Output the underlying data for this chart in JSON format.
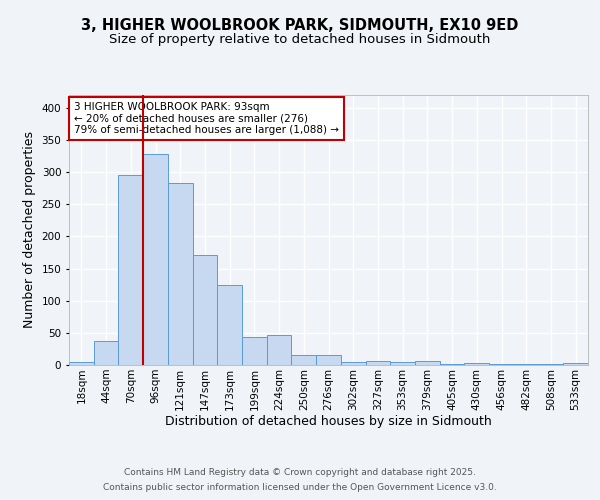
{
  "title_line1": "3, HIGHER WOOLBROOK PARK, SIDMOUTH, EX10 9ED",
  "title_line2": "Size of property relative to detached houses in Sidmouth",
  "xlabel": "Distribution of detached houses by size in Sidmouth",
  "ylabel": "Number of detached properties",
  "categories": [
    "18sqm",
    "44sqm",
    "70sqm",
    "96sqm",
    "121sqm",
    "147sqm",
    "173sqm",
    "199sqm",
    "224sqm",
    "250sqm",
    "276sqm",
    "302sqm",
    "327sqm",
    "353sqm",
    "379sqm",
    "405sqm",
    "430sqm",
    "456sqm",
    "482sqm",
    "508sqm",
    "533sqm"
  ],
  "values": [
    4,
    38,
    295,
    328,
    283,
    171,
    125,
    43,
    46,
    15,
    16,
    5,
    6,
    4,
    6,
    1,
    3,
    1,
    2,
    1,
    3
  ],
  "bar_color": "#c6d9f0",
  "bar_edge_color": "#5b9bd5",
  "vline_x_index": 3,
  "vline_color": "#c00000",
  "annotation_text": "3 HIGHER WOOLBROOK PARK: 93sqm\n← 20% of detached houses are smaller (276)\n79% of semi-detached houses are larger (1,088) →",
  "annotation_box_facecolor": "#ffffff",
  "annotation_box_edgecolor": "#c00000",
  "ylim": [
    0,
    420
  ],
  "yticks": [
    0,
    50,
    100,
    150,
    200,
    250,
    300,
    350,
    400
  ],
  "fig_background": "#f0f4f8",
  "plot_background": "#f0f4f8",
  "grid_color": "#ffffff",
  "footer_line1": "Contains HM Land Registry data © Crown copyright and database right 2025.",
  "footer_line2": "Contains public sector information licensed under the Open Government Licence v3.0.",
  "title_fontsize": 10.5,
  "subtitle_fontsize": 9.5,
  "axis_label_fontsize": 9,
  "tick_fontsize": 7.5,
  "annotation_fontsize": 7.5,
  "footer_fontsize": 6.5
}
